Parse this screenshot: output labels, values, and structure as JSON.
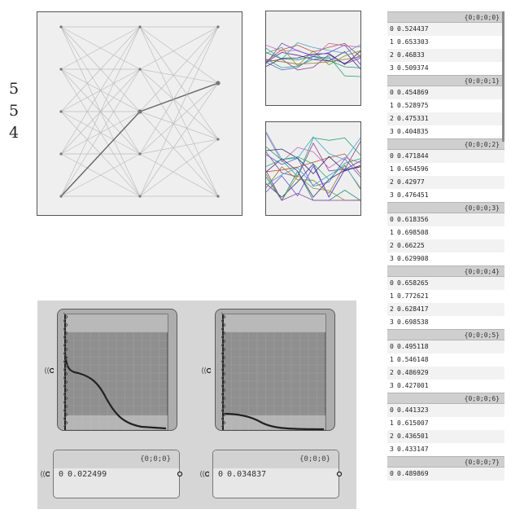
{
  "layer_labels": [
    "5",
    "5",
    "4"
  ],
  "tree": {
    "branches": [
      {
        "path": "{0;0;0;0}",
        "items": [
          [
            "0",
            "0.524437"
          ],
          [
            "1",
            "0.653303"
          ],
          [
            "2",
            "0.46833"
          ],
          [
            "3",
            "0.509374"
          ]
        ]
      },
      {
        "path": "{0;0;0;1}",
        "items": [
          [
            "0",
            "0.454869"
          ],
          [
            "1",
            "0.528975"
          ],
          [
            "2",
            "0.475331"
          ],
          [
            "3",
            "0.404835"
          ]
        ]
      },
      {
        "path": "{0;0;0;2}",
        "items": [
          [
            "0",
            "0.471844"
          ],
          [
            "1",
            "0.654596"
          ],
          [
            "2",
            "0.42977"
          ],
          [
            "3",
            "0.476451"
          ]
        ]
      },
      {
        "path": "{0;0;0;3}",
        "items": [
          [
            "0",
            "0.618356"
          ],
          [
            "1",
            "0.698508"
          ],
          [
            "2",
            "0.66225"
          ],
          [
            "3",
            "0.629908"
          ]
        ]
      },
      {
        "path": "{0;0;0;4}",
        "items": [
          [
            "0",
            "0.658265"
          ],
          [
            "1",
            "0.772621"
          ],
          [
            "2",
            "0.628417"
          ],
          [
            "3",
            "0.698538"
          ]
        ]
      },
      {
        "path": "{0;0;0;5}",
        "items": [
          [
            "0",
            "0.495118"
          ],
          [
            "1",
            "0.546148"
          ],
          [
            "2",
            "0.486929"
          ],
          [
            "3",
            "0.427001"
          ]
        ]
      },
      {
        "path": "{0;0;0;6}",
        "items": [
          [
            "0",
            "0.441323"
          ],
          [
            "1",
            "0.615007"
          ],
          [
            "2",
            "0.436501"
          ],
          [
            "3",
            "0.433147"
          ]
        ]
      },
      {
        "path": "{0;0;0;7}",
        "items": [
          [
            "0",
            "0.489869"
          ]
        ]
      }
    ]
  },
  "panels": [
    {
      "path": "{0;0;0}",
      "index": "0",
      "value": "0.022499"
    },
    {
      "path": "{0;0;0}",
      "index": "0",
      "value": "0.034837"
    }
  ],
  "colors": {
    "canvas": "#d6d6d6",
    "graph_bg": "#8f8f8f",
    "curve": "#222222"
  }
}
